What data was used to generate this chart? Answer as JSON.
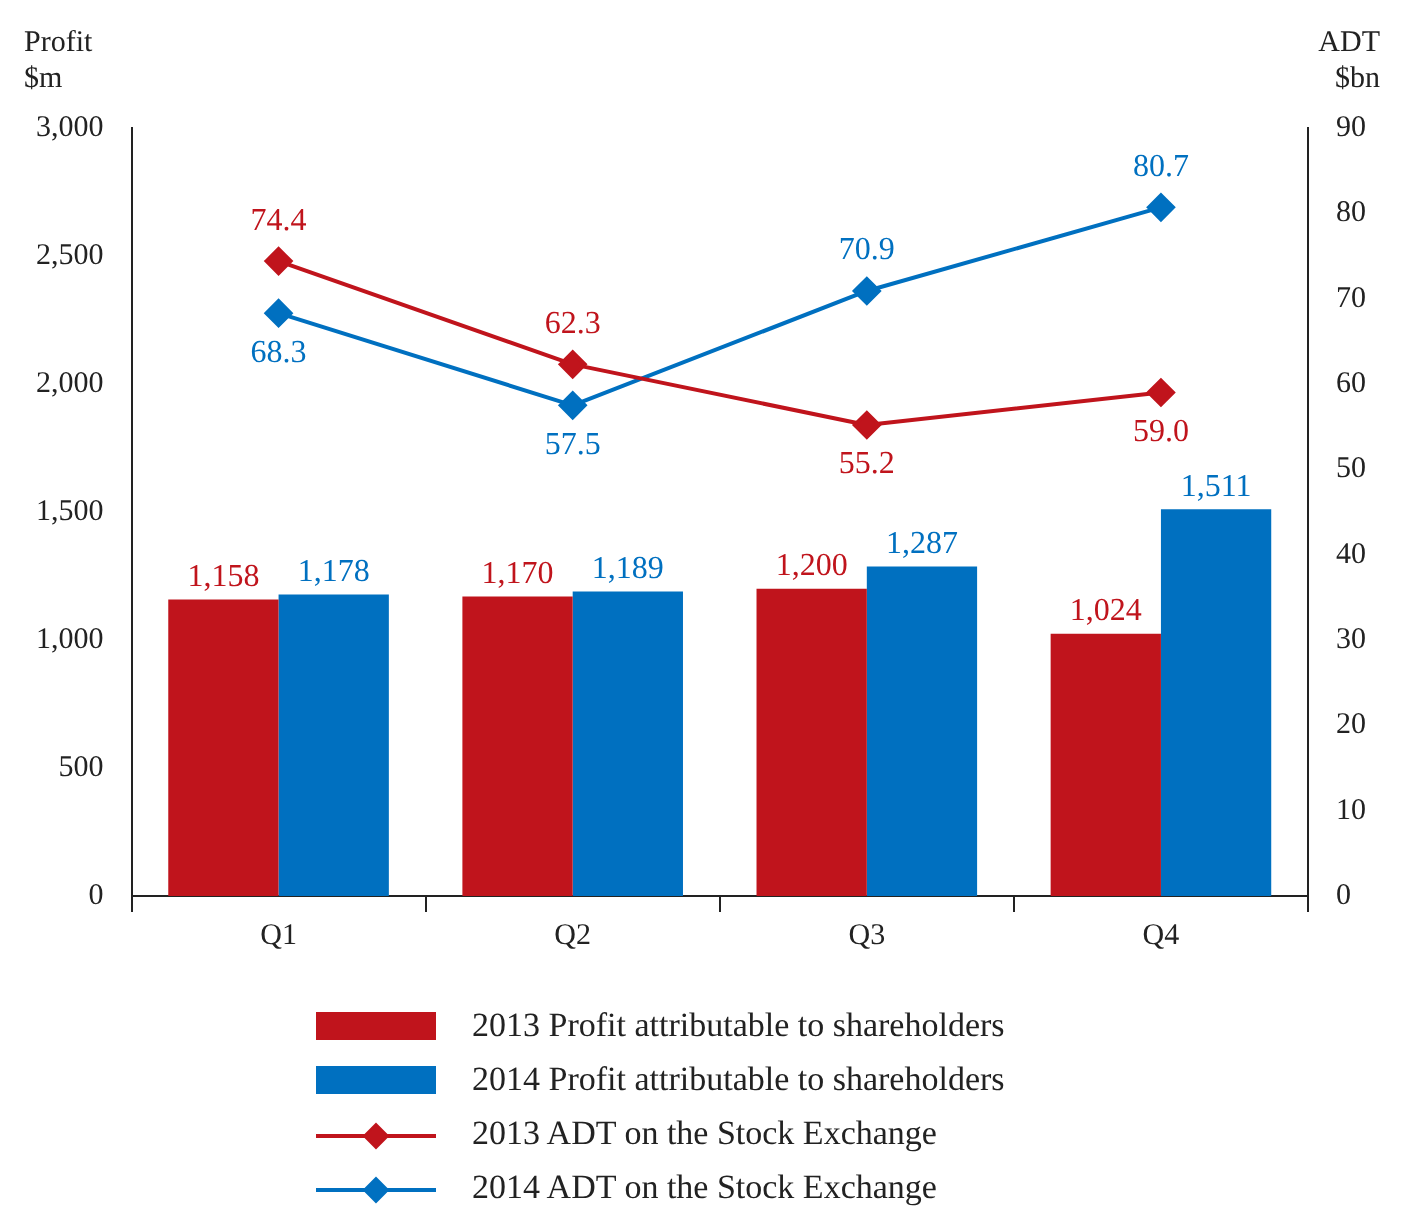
{
  "chart_data": {
    "type": "bar",
    "ylabel": "Profit $m",
    "y2label": "ADT $bn",
    "categories": [
      "Q1",
      "Q2",
      "Q3",
      "Q4"
    ],
    "series": [
      {
        "name": "2013 Profit attributable to shareholders",
        "color": "#c0141c",
        "values": [
          1158,
          1170,
          1200,
          1024
        ],
        "value_labels": [
          "1,158",
          "1,170",
          "1,200",
          "1,024"
        ]
      },
      {
        "name": "2014 Profit attributable to shareholders",
        "color": "#0070c0",
        "values": [
          1178,
          1189,
          1287,
          1511
        ],
        "value_labels": [
          "1,178",
          "1,189",
          "1,287",
          "1,511"
        ]
      },
      {
        "name": "2013 ADT on the Stock Exchange",
        "type": "line",
        "axis": "y2",
        "color": "#c0141c",
        "values": [
          74.4,
          62.3,
          55.2,
          59.0
        ],
        "value_labels": [
          "74.4",
          "62.3",
          "55.2",
          "59.0"
        ]
      },
      {
        "name": "2014 ADT on the Stock Exchange",
        "type": "line",
        "axis": "y2",
        "color": "#0070c0",
        "values": [
          68.3,
          57.5,
          70.9,
          80.7
        ],
        "value_labels": [
          "68.3",
          "57.5",
          "70.9",
          "80.7"
        ]
      }
    ],
    "ylim": [
      0,
      3000
    ],
    "yticks": [
      0,
      {
        "value": 500,
        "label": "500"
      },
      {
        "value": 1000,
        "label": "1,000"
      },
      {
        "value": 1500,
        "label": "1,500"
      },
      {
        "value": 2000,
        "label": "2,000"
      },
      {
        "value": 2500,
        "label": "2,500"
      },
      {
        "value": 3000,
        "label": "3,000"
      }
    ],
    "y2lim": [
      0,
      90
    ],
    "y2ticks": [
      0,
      10,
      20,
      30,
      40,
      50,
      60,
      70,
      80,
      90
    ],
    "grid": false,
    "legend": "bottom",
    "marker": "diamond",
    "line_style": "solid"
  }
}
